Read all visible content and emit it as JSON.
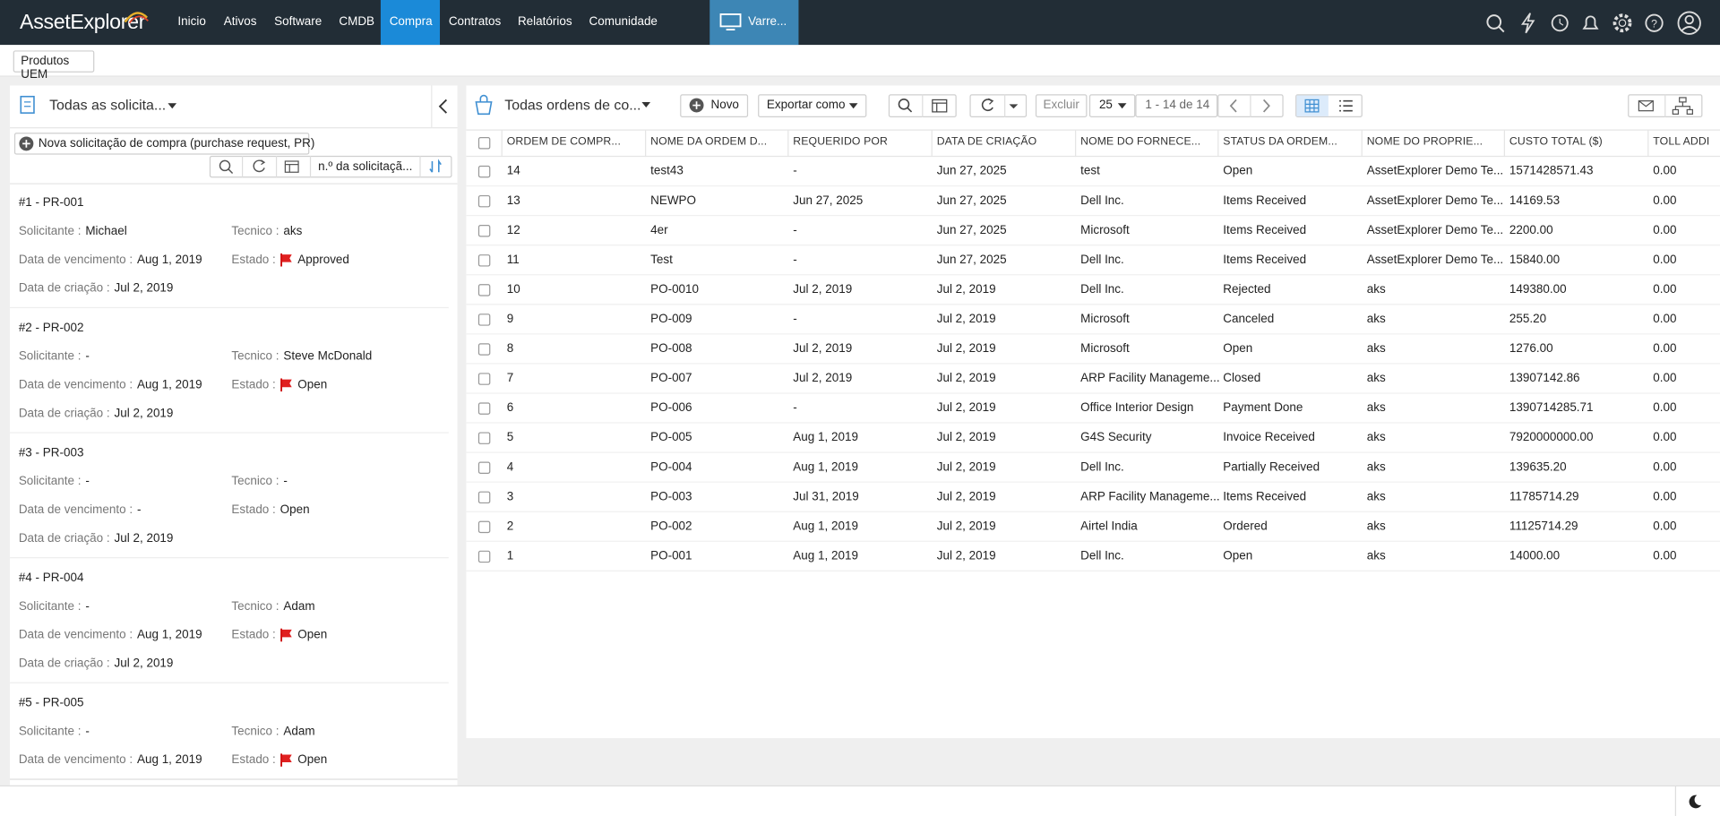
{
  "nav": {
    "logo": "AssetExplorer",
    "items": [
      "Inicio",
      "Ativos",
      "Software",
      "CMDB",
      "Compra",
      "Contratos",
      "Relatórios",
      "Comunidade"
    ],
    "active": 4,
    "scan": "Varre..."
  },
  "subbar": {
    "button": "Produtos UEM"
  },
  "left": {
    "view": "Todas as solicita...",
    "new_button": "Nova solicitação de compra (purchase request, PR)",
    "sort_field": "n.º da solicitaçã...",
    "labels": {
      "solicitante": "Solicitante :",
      "tecnico": "Tecnico :",
      "vencimento": "Data de vencimento :",
      "estado": "Estado :",
      "criacao": "Data de criação :"
    },
    "requests": [
      {
        "title": "#1 - PR-001",
        "solicitante": "Michael",
        "tecnico": "aks",
        "vencimento": "Aug 1, 2019",
        "estado": "Approved",
        "flagged": true,
        "criacao": "Jul 2, 2019"
      },
      {
        "title": "#2 - PR-002",
        "solicitante": "-",
        "tecnico": "Steve McDonald",
        "vencimento": "Aug 1, 2019",
        "estado": "Open",
        "flagged": true,
        "criacao": "Jul 2, 2019"
      },
      {
        "title": "#3 - PR-003",
        "solicitante": "-",
        "tecnico": "-",
        "vencimento": "-",
        "estado": "Open",
        "flagged": false,
        "criacao": "Jul 2, 2019"
      },
      {
        "title": "#4 - PR-004",
        "solicitante": "-",
        "tecnico": "Adam",
        "vencimento": "Aug 1, 2019",
        "estado": "Open",
        "flagged": true,
        "criacao": "Jul 2, 2019"
      },
      {
        "title": "#5 - PR-005",
        "solicitante": "-",
        "tecnico": "Adam",
        "vencimento": "Aug 1, 2019",
        "estado": "Open",
        "flagged": true
      }
    ]
  },
  "right": {
    "view": "Todas ordens de co...",
    "new": "Novo",
    "export": "Exportar como",
    "delete": "Excluir",
    "page_size": "25",
    "range": "1 - 14 de 14",
    "columns": [
      "ORDEM DE COMPR...",
      "NOME DA ORDEM D...",
      "REQUERIDO POR",
      "DATA DE CRIAÇÃO",
      "NOME DO FORNECE...",
      "STATUS DA ORDEM...",
      "NOME DO PROPRIE...",
      "CUSTO TOTAL ($)",
      "TOLL ADDI"
    ],
    "rows": [
      [
        "14",
        "test43",
        "-",
        "Jun 27, 2025",
        "test",
        "Open",
        "AssetExplorer Demo Te...",
        "1571428571.43",
        "0.00"
      ],
      [
        "13",
        "NEWPO",
        "Jun 27, 2025",
        "Jun 27, 2025",
        "Dell Inc.",
        "Items Received",
        "AssetExplorer Demo Te...",
        "14169.53",
        "0.00"
      ],
      [
        "12",
        "4er",
        "-",
        "Jun 27, 2025",
        "Microsoft",
        "Items Received",
        "AssetExplorer Demo Te...",
        "2200.00",
        "0.00"
      ],
      [
        "11",
        "Test",
        "-",
        "Jun 27, 2025",
        "Dell Inc.",
        "Items Received",
        "AssetExplorer Demo Te...",
        "15840.00",
        "0.00"
      ],
      [
        "10",
        "PO-0010",
        "Jul 2, 2019",
        "Jul 2, 2019",
        "Dell Inc.",
        "Rejected",
        "aks",
        "149380.00",
        "0.00"
      ],
      [
        "9",
        "PO-009",
        "-",
        "Jul 2, 2019",
        "Microsoft",
        "Canceled",
        "aks",
        "255.20",
        "0.00"
      ],
      [
        "8",
        "PO-008",
        "Jul 2, 2019",
        "Jul 2, 2019",
        "Microsoft",
        "Open",
        "aks",
        "1276.00",
        "0.00"
      ],
      [
        "7",
        "PO-007",
        "Jul 2, 2019",
        "Jul 2, 2019",
        "ARP Facility Manageme...",
        "Closed",
        "aks",
        "13907142.86",
        "0.00"
      ],
      [
        "6",
        "PO-006",
        "-",
        "Jul 2, 2019",
        "Office Interior Design",
        "Payment Done",
        "aks",
        "1390714285.71",
        "0.00"
      ],
      [
        "5",
        "PO-005",
        "Aug 1, 2019",
        "Jul 2, 2019",
        "G4S Security",
        "Invoice Received",
        "aks",
        "7920000000.00",
        "0.00"
      ],
      [
        "4",
        "PO-004",
        "Aug 1, 2019",
        "Jul 2, 2019",
        "Dell Inc.",
        "Partially Received",
        "aks",
        "139635.20",
        "0.00"
      ],
      [
        "3",
        "PO-003",
        "Jul 31, 2019",
        "Jul 2, 2019",
        "ARP Facility Manageme...",
        "Items Received",
        "aks",
        "11785714.29",
        "0.00"
      ],
      [
        "2",
        "PO-002",
        "Aug 1, 2019",
        "Jul 2, 2019",
        "Airtel India",
        "Ordered",
        "aks",
        "11125714.29",
        "0.00"
      ],
      [
        "1",
        "PO-001",
        "Aug 1, 2019",
        "Jul 2, 2019",
        "Dell Inc.",
        "Open",
        "aks",
        "14000.00",
        "0.00"
      ]
    ]
  }
}
